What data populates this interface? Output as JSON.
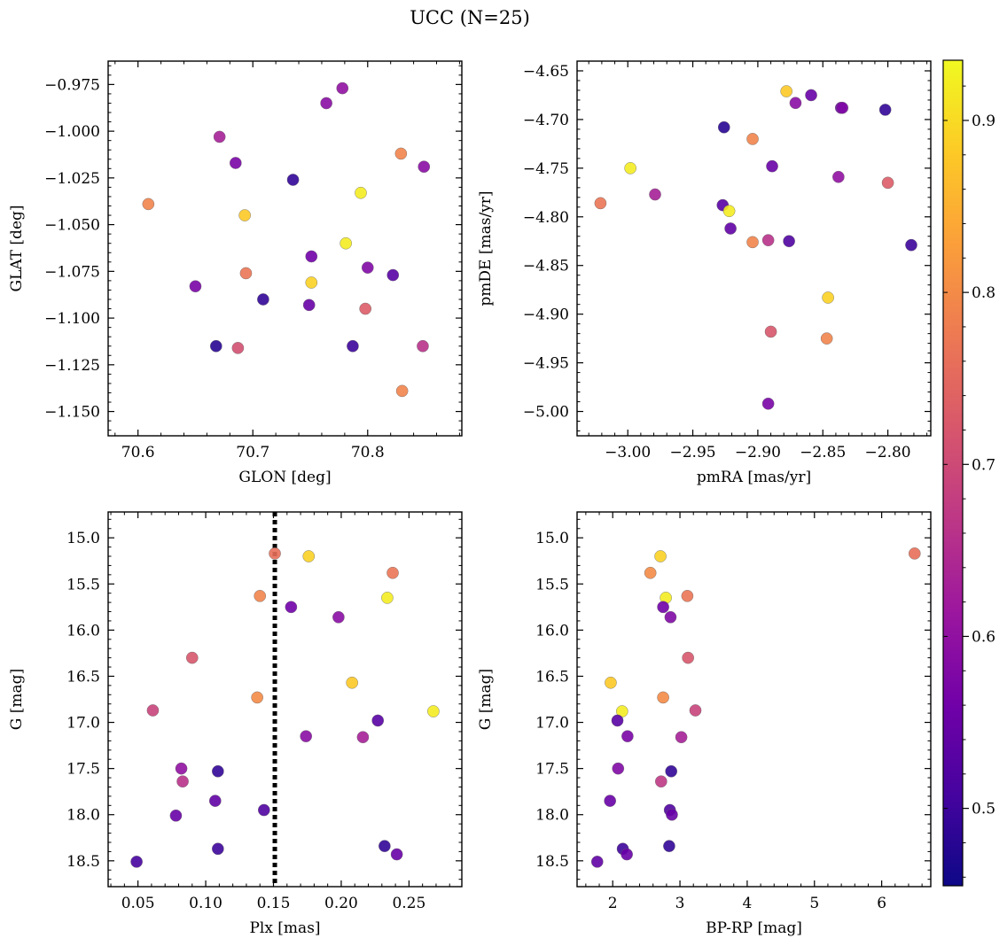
{
  "title": "UCC (N=25)",
  "colorbar": {
    "range": [
      0.455,
      0.935
    ],
    "ticks": [
      0.5,
      0.6,
      0.7,
      0.8,
      0.9
    ],
    "colormap": "plasma",
    "stops": [
      "#0d0887",
      "#46039f",
      "#7201a8",
      "#9c179e",
      "#bd3786",
      "#d8576b",
      "#ed7953",
      "#fb9f3a",
      "#fdca26",
      "#f0f921"
    ]
  },
  "chart_data": [
    {
      "id": "glon-glat",
      "type": "scatter",
      "xlabel": "GLON [deg]",
      "ylabel": "GLAT [deg]",
      "xlim": [
        70.574,
        70.882
      ],
      "ylim": [
        -1.163,
        -0.9625
      ],
      "xticks": [
        70.6,
        70.7,
        70.8
      ],
      "yticks": [
        -0.975,
        -1.0,
        -1.025,
        -1.05,
        -1.075,
        -1.1,
        -1.125,
        -1.15
      ],
      "xticklabels": [
        "70.6",
        "70.7",
        "70.8"
      ],
      "yticklabels": [
        "−0.975",
        "−1.000",
        "−1.025",
        "−1.050",
        "−1.075",
        "−1.100",
        "−1.125",
        "−1.150"
      ],
      "points": [
        {
          "x": 70.778,
          "y": -0.977,
          "c": 0.6
        },
        {
          "x": 70.764,
          "y": -0.985,
          "c": 0.59
        },
        {
          "x": 70.671,
          "y": -1.003,
          "c": 0.63
        },
        {
          "x": 70.829,
          "y": -1.012,
          "c": 0.79
        },
        {
          "x": 70.685,
          "y": -1.017,
          "c": 0.57
        },
        {
          "x": 70.849,
          "y": -1.019,
          "c": 0.59
        },
        {
          "x": 70.735,
          "y": -1.026,
          "c": 0.49
        },
        {
          "x": 70.794,
          "y": -1.033,
          "c": 0.92
        },
        {
          "x": 70.609,
          "y": -1.039,
          "c": 0.79
        },
        {
          "x": 70.693,
          "y": -1.045,
          "c": 0.88
        },
        {
          "x": 70.781,
          "y": -1.06,
          "c": 0.92
        },
        {
          "x": 70.751,
          "y": -1.067,
          "c": 0.56
        },
        {
          "x": 70.8,
          "y": -1.073,
          "c": 0.58
        },
        {
          "x": 70.694,
          "y": -1.076,
          "c": 0.77
        },
        {
          "x": 70.822,
          "y": -1.077,
          "c": 0.53
        },
        {
          "x": 70.751,
          "y": -1.081,
          "c": 0.89
        },
        {
          "x": 70.65,
          "y": -1.083,
          "c": 0.57
        },
        {
          "x": 70.709,
          "y": -1.09,
          "c": 0.49
        },
        {
          "x": 70.749,
          "y": -1.093,
          "c": 0.55
        },
        {
          "x": 70.798,
          "y": -1.095,
          "c": 0.73
        },
        {
          "x": 70.668,
          "y": -1.115,
          "c": 0.48
        },
        {
          "x": 70.787,
          "y": -1.115,
          "c": 0.5
        },
        {
          "x": 70.687,
          "y": -1.116,
          "c": 0.71
        },
        {
          "x": 70.848,
          "y": -1.115,
          "c": 0.66
        },
        {
          "x": 70.83,
          "y": -1.139,
          "c": 0.79
        }
      ]
    },
    {
      "id": "pmra-pmde",
      "type": "scatter",
      "xlabel": "pmRA [mas/yr]",
      "ylabel": "pmDE [mas/yr]",
      "xlim": [
        -3.039,
        -2.767
      ],
      "ylim": [
        -5.025,
        -4.64
      ],
      "xticks": [
        -3.0,
        -2.95,
        -2.9,
        -2.85,
        -2.8
      ],
      "yticks": [
        -4.65,
        -4.7,
        -4.75,
        -4.8,
        -4.85,
        -4.9,
        -4.95,
        -5.0
      ],
      "xticklabels": [
        "−3.00",
        "−2.95",
        "−2.90",
        "−2.85",
        "−2.80"
      ],
      "yticklabels": [
        "−4.65",
        "−4.70",
        "−4.75",
        "−4.80",
        "−4.85",
        "−4.90",
        "−4.95",
        "−5.00"
      ],
      "points": [
        {
          "x": -2.878,
          "y": -4.671,
          "c": 0.88
        },
        {
          "x": -2.859,
          "y": -4.675,
          "c": 0.55
        },
        {
          "x": -2.871,
          "y": -4.683,
          "c": 0.59
        },
        {
          "x": -2.836,
          "y": -4.688,
          "c": 0.55
        },
        {
          "x": -2.835,
          "y": -4.688,
          "c": 0.58
        },
        {
          "x": -2.802,
          "y": -4.69,
          "c": 0.49
        },
        {
          "x": -2.926,
          "y": -4.708,
          "c": 0.48
        },
        {
          "x": -2.904,
          "y": -4.72,
          "c": 0.79
        },
        {
          "x": -2.889,
          "y": -4.748,
          "c": 0.55
        },
        {
          "x": -2.998,
          "y": -4.75,
          "c": 0.92
        },
        {
          "x": -2.838,
          "y": -4.759,
          "c": 0.6
        },
        {
          "x": -2.8,
          "y": -4.765,
          "c": 0.73
        },
        {
          "x": -2.979,
          "y": -4.777,
          "c": 0.63
        },
        {
          "x": -3.021,
          "y": -4.786,
          "c": 0.77
        },
        {
          "x": -2.927,
          "y": -4.788,
          "c": 0.53
        },
        {
          "x": -2.922,
          "y": -4.794,
          "c": 0.92
        },
        {
          "x": -2.921,
          "y": -4.812,
          "c": 0.54
        },
        {
          "x": -2.892,
          "y": -4.824,
          "c": 0.66
        },
        {
          "x": -2.876,
          "y": -4.825,
          "c": 0.52
        },
        {
          "x": -2.904,
          "y": -4.826,
          "c": 0.79
        },
        {
          "x": -2.782,
          "y": -4.829,
          "c": 0.5
        },
        {
          "x": -2.846,
          "y": -4.883,
          "c": 0.89
        },
        {
          "x": -2.89,
          "y": -4.918,
          "c": 0.72
        },
        {
          "x": -2.847,
          "y": -4.925,
          "c": 0.79
        },
        {
          "x": -2.892,
          "y": -4.992,
          "c": 0.57
        }
      ]
    },
    {
      "id": "plx-g",
      "type": "scatter",
      "xlabel": "Plx [mas]",
      "ylabel": "G [mag]",
      "xlim": [
        0.028,
        0.289
      ],
      "ylim": [
        18.78,
        14.72
      ],
      "xticks": [
        0.05,
        0.1,
        0.15,
        0.2,
        0.25
      ],
      "yticks": [
        15.0,
        15.5,
        16.0,
        16.5,
        17.0,
        17.5,
        18.0,
        18.5
      ],
      "xticklabels": [
        "0.05",
        "0.10",
        "0.15",
        "0.20",
        "0.25"
      ],
      "yticklabels": [
        "15.0",
        "15.5",
        "16.0",
        "16.5",
        "17.0",
        "17.5",
        "18.0",
        "18.5"
      ],
      "vline": 0.151,
      "points": [
        {
          "x": 0.151,
          "y": 15.17,
          "c": 0.76
        },
        {
          "x": 0.176,
          "y": 15.2,
          "c": 0.89
        },
        {
          "x": 0.238,
          "y": 15.38,
          "c": 0.77
        },
        {
          "x": 0.14,
          "y": 15.63,
          "c": 0.79
        },
        {
          "x": 0.234,
          "y": 15.65,
          "c": 0.92
        },
        {
          "x": 0.163,
          "y": 15.75,
          "c": 0.56
        },
        {
          "x": 0.198,
          "y": 15.86,
          "c": 0.59
        },
        {
          "x": 0.09,
          "y": 16.3,
          "c": 0.72
        },
        {
          "x": 0.208,
          "y": 16.57,
          "c": 0.88
        },
        {
          "x": 0.138,
          "y": 16.73,
          "c": 0.8
        },
        {
          "x": 0.268,
          "y": 16.88,
          "c": 0.92
        },
        {
          "x": 0.061,
          "y": 16.87,
          "c": 0.69
        },
        {
          "x": 0.227,
          "y": 16.98,
          "c": 0.53
        },
        {
          "x": 0.174,
          "y": 17.15,
          "c": 0.59
        },
        {
          "x": 0.216,
          "y": 17.16,
          "c": 0.63
        },
        {
          "x": 0.082,
          "y": 17.5,
          "c": 0.6
        },
        {
          "x": 0.109,
          "y": 17.53,
          "c": 0.49
        },
        {
          "x": 0.083,
          "y": 17.64,
          "c": 0.66
        },
        {
          "x": 0.107,
          "y": 17.85,
          "c": 0.54
        },
        {
          "x": 0.143,
          "y": 17.95,
          "c": 0.52
        },
        {
          "x": 0.078,
          "y": 18.01,
          "c": 0.55
        },
        {
          "x": 0.232,
          "y": 18.34,
          "c": 0.49
        },
        {
          "x": 0.109,
          "y": 18.37,
          "c": 0.5
        },
        {
          "x": 0.241,
          "y": 18.43,
          "c": 0.55
        },
        {
          "x": 0.049,
          "y": 18.51,
          "c": 0.51
        }
      ]
    },
    {
      "id": "bprp-g",
      "type": "scatter",
      "xlabel": "BP-RP [mag]",
      "ylabel": "G [mag]",
      "xlim": [
        1.47,
        6.73
      ],
      "ylim": [
        18.78,
        14.72
      ],
      "xticks": [
        2,
        3,
        4,
        5,
        6
      ],
      "yticks": [
        15.0,
        15.5,
        16.0,
        16.5,
        17.0,
        17.5,
        18.0,
        18.5
      ],
      "xticklabels": [
        "2",
        "3",
        "4",
        "5",
        "6"
      ],
      "yticklabels": [
        "15.0",
        "15.5",
        "16.0",
        "16.5",
        "17.0",
        "17.5",
        "18.0",
        "18.5"
      ],
      "points": [
        {
          "x": 6.49,
          "y": 15.17,
          "c": 0.76
        },
        {
          "x": 2.71,
          "y": 15.2,
          "c": 0.89
        },
        {
          "x": 2.56,
          "y": 15.38,
          "c": 0.8
        },
        {
          "x": 3.11,
          "y": 15.63,
          "c": 0.77
        },
        {
          "x": 2.79,
          "y": 15.65,
          "c": 0.92
        },
        {
          "x": 2.75,
          "y": 15.75,
          "c": 0.56
        },
        {
          "x": 2.86,
          "y": 15.86,
          "c": 0.58
        },
        {
          "x": 3.12,
          "y": 16.3,
          "c": 0.72
        },
        {
          "x": 1.97,
          "y": 16.57,
          "c": 0.88
        },
        {
          "x": 2.75,
          "y": 16.73,
          "c": 0.8
        },
        {
          "x": 2.14,
          "y": 16.88,
          "c": 0.92
        },
        {
          "x": 3.23,
          "y": 16.87,
          "c": 0.69
        },
        {
          "x": 2.07,
          "y": 16.98,
          "c": 0.53
        },
        {
          "x": 2.22,
          "y": 17.15,
          "c": 0.57
        },
        {
          "x": 3.02,
          "y": 17.16,
          "c": 0.63
        },
        {
          "x": 2.08,
          "y": 17.5,
          "c": 0.58
        },
        {
          "x": 2.87,
          "y": 17.53,
          "c": 0.49
        },
        {
          "x": 2.72,
          "y": 17.64,
          "c": 0.67
        },
        {
          "x": 1.96,
          "y": 17.85,
          "c": 0.55
        },
        {
          "x": 2.85,
          "y": 17.95,
          "c": 0.52
        },
        {
          "x": 2.88,
          "y": 18.0,
          "c": 0.55
        },
        {
          "x": 2.84,
          "y": 18.34,
          "c": 0.49
        },
        {
          "x": 2.15,
          "y": 18.37,
          "c": 0.5
        },
        {
          "x": 2.21,
          "y": 18.43,
          "c": 0.55
        },
        {
          "x": 1.77,
          "y": 18.51,
          "c": 0.54
        }
      ]
    }
  ]
}
